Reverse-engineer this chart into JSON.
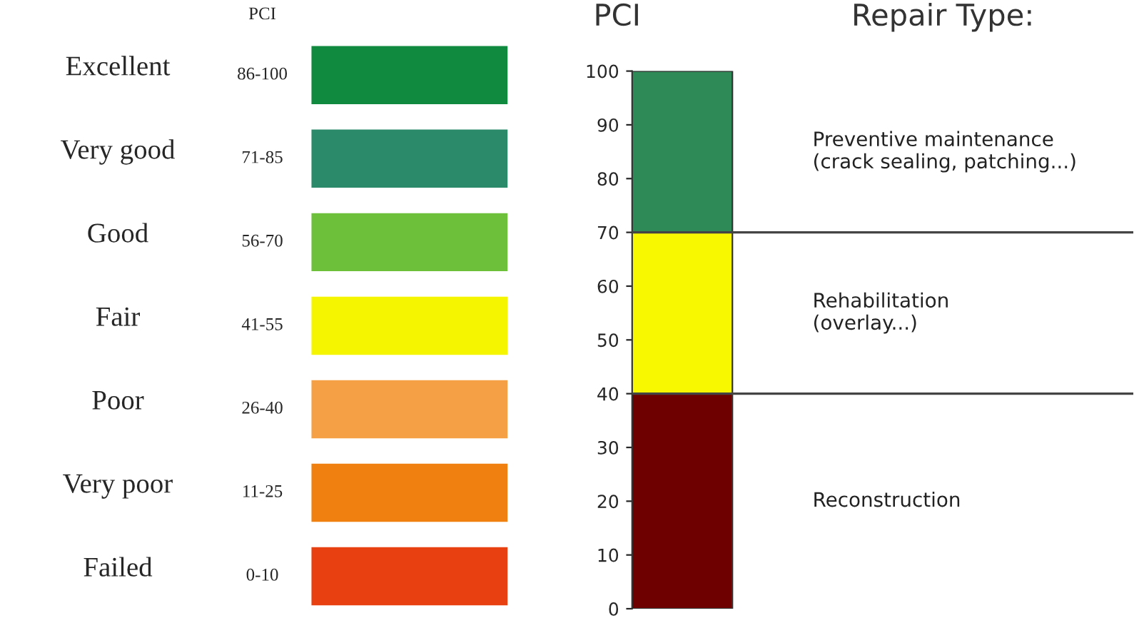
{
  "chart_data": [
    {
      "type": "other",
      "title": "PCI",
      "categories": [
        "Excellent",
        "Very good",
        "Good",
        "Fair",
        "Poor",
        "Very poor",
        "Failed"
      ],
      "colors": [
        "#0f8a3e",
        "#2a8a6a",
        "#6cc03a",
        "#f5f500",
        "#f5a045",
        "#f08010",
        "#e84010"
      ],
      "annotations": [
        "86-100",
        "71-85",
        "56-70",
        "41-55",
        "26-40",
        "11-25",
        "0-10"
      ]
    },
    {
      "type": "bar",
      "stacked": true,
      "ylabel": "PCI",
      "categories": [
        null
      ],
      "series": [
        {
          "color": "#6e0000",
          "values": [
            40
          ]
        },
        {
          "color": "#f8f800",
          "values": [
            30
          ]
        },
        {
          "color": "#2e8b57",
          "values": [
            30
          ]
        }
      ],
      "ylim": [
        0,
        100
      ],
      "yticks": [
        0,
        10,
        20,
        30,
        40,
        50,
        60,
        70,
        80,
        90,
        100
      ],
      "ref_lines": [
        {
          "axis": "y",
          "value": 70
        },
        {
          "axis": "y",
          "value": 40
        }
      ],
      "annotations": [
        "Repair Type:",
        "Preventive maintenance\n(crack sealing, patching...)",
        "Rehabilitation\n(overlay...)",
        "Reconstruction"
      ]
    }
  ]
}
